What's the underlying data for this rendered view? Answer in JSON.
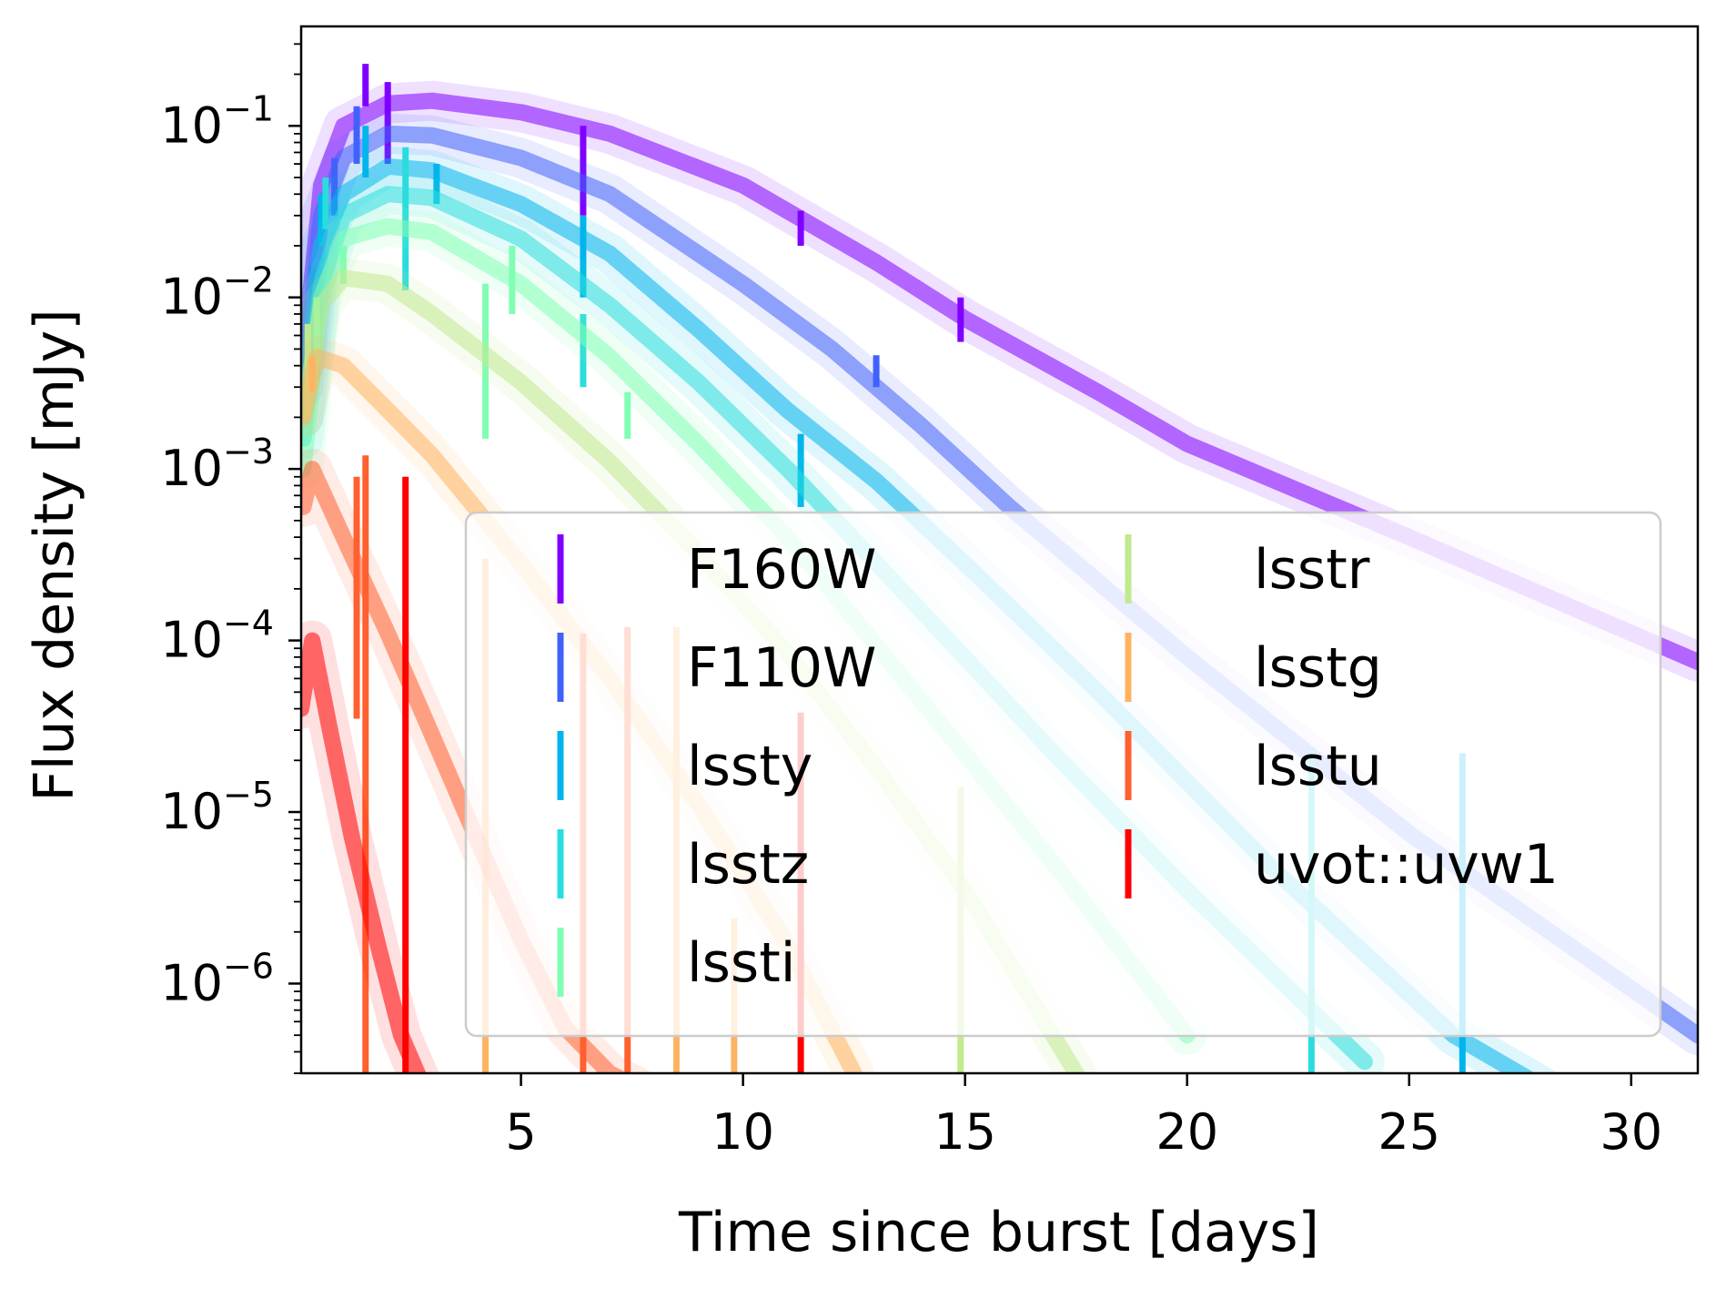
{
  "chart_data": {
    "type": "line",
    "xlabel": "Time since burst [days]",
    "ylabel": "Flux density [mJy]",
    "xscale": "linear",
    "yscale": "log",
    "xlim": [
      0.05,
      31.5
    ],
    "ylim": [
      3e-07,
      0.38
    ],
    "xticks": [
      5,
      10,
      15,
      20,
      25,
      30
    ],
    "xtick_labels": [
      "5",
      "10",
      "15",
      "20",
      "25",
      "30"
    ],
    "yticks": [
      1e-06,
      1e-05,
      0.0001,
      0.001,
      0.01,
      0.1
    ],
    "ytick_labels": [
      {
        "base": "10",
        "exp": "−6"
      },
      {
        "base": "10",
        "exp": "−5"
      },
      {
        "base": "10",
        "exp": "−4"
      },
      {
        "base": "10",
        "exp": "−3"
      },
      {
        "base": "10",
        "exp": "−2"
      },
      {
        "base": "10",
        "exp": "−1"
      }
    ],
    "legend": {
      "placement": "center-right",
      "columns": 2
    },
    "series": [
      {
        "name": "F160W",
        "color": "#8000ff",
        "curve": {
          "x": [
            0.1,
            0.5,
            1,
            2,
            3,
            5,
            7,
            10,
            13,
            15,
            18,
            20,
            25,
            31.5
          ],
          "y": [
            0.004,
            0.045,
            0.1,
            0.135,
            0.14,
            0.12,
            0.09,
            0.045,
            0.016,
            0.0075,
            0.0028,
            0.0014,
            0.0004,
            7.5e-05
          ]
        },
        "points": [
          {
            "x": 1.5,
            "y": 0.17,
            "lo": 0.13,
            "hi": 0.23
          },
          {
            "x": 2.0,
            "y": 0.11,
            "lo": 0.06,
            "hi": 0.18
          },
          {
            "x": 6.4,
            "y": 0.05,
            "lo": 0.03,
            "hi": 0.1
          },
          {
            "x": 11.3,
            "y": 0.025,
            "lo": 0.02,
            "hi": 0.032
          },
          {
            "x": 14.9,
            "y": 0.0075,
            "lo": 0.0055,
            "hi": 0.01
          }
        ]
      },
      {
        "name": "F110W",
        "color": "#4062fa",
        "curve": {
          "x": [
            0.1,
            0.5,
            1,
            2,
            3,
            5,
            7,
            10,
            12,
            14,
            16,
            20,
            25,
            31.5
          ],
          "y": [
            0.003,
            0.03,
            0.065,
            0.09,
            0.088,
            0.065,
            0.04,
            0.012,
            0.005,
            0.0018,
            0.0006,
            8e-05,
            7.5e-06,
            5e-07
          ]
        },
        "points": [
          {
            "x": 0.3,
            "y": 0.01,
            "lo": 0.006,
            "hi": 0.015
          },
          {
            "x": 0.8,
            "y": 0.045,
            "lo": 0.03,
            "hi": 0.065
          },
          {
            "x": 1.3,
            "y": 0.09,
            "lo": 0.06,
            "hi": 0.13
          },
          {
            "x": 13.0,
            "y": 0.0038,
            "lo": 0.003,
            "hi": 0.0046
          }
        ]
      },
      {
        "name": "lssty",
        "color": "#00b5eb",
        "curve": {
          "x": [
            0.1,
            0.5,
            1,
            2,
            3,
            5,
            7,
            9,
            11,
            13,
            15,
            18,
            22,
            26,
            28
          ],
          "y": [
            0.002,
            0.02,
            0.04,
            0.058,
            0.055,
            0.035,
            0.018,
            0.0065,
            0.0022,
            0.00085,
            0.00028,
            5e-05,
            4.5e-06,
            5e-07,
            2.5e-07
          ]
        },
        "points": [
          {
            "x": 0.5,
            "y": 0.028,
            "lo": 0.02,
            "hi": 0.04
          },
          {
            "x": 1.5,
            "y": 0.075,
            "lo": 0.05,
            "hi": 0.1
          },
          {
            "x": 3.1,
            "y": 0.045,
            "lo": 0.035,
            "hi": 0.06
          },
          {
            "x": 6.4,
            "y": 0.018,
            "lo": 0.01,
            "hi": 0.03
          },
          {
            "x": 11.3,
            "y": 0.0008,
            "lo": 0.0006,
            "hi": 0.0016
          },
          {
            "x": 26.2,
            "y": 5e-07,
            "lo": 3e-07,
            "hi": 2.2e-05
          }
        ]
      },
      {
        "name": "lsstz",
        "color": "#2adddd",
        "curve": {
          "x": [
            0.1,
            0.5,
            1,
            2,
            3,
            5,
            7,
            9,
            11,
            14,
            17,
            20,
            24
          ],
          "y": [
            0.0015,
            0.012,
            0.03,
            0.04,
            0.038,
            0.022,
            0.009,
            0.0032,
            0.001,
            0.00015,
            2.2e-05,
            3.5e-06,
            3.5e-07
          ]
        },
        "points": [
          {
            "x": 0.6,
            "y": 0.035,
            "lo": 0.025,
            "hi": 0.05
          },
          {
            "x": 2.4,
            "y": 0.03,
            "lo": 0.011,
            "hi": 0.075
          },
          {
            "x": 6.4,
            "y": 0.005,
            "lo": 0.003,
            "hi": 0.008
          },
          {
            "x": 22.8,
            "y": 5e-07,
            "lo": 3e-07,
            "hi": 2.3e-05
          }
        ]
      },
      {
        "name": "lssti",
        "color": "#80ffb4",
        "curve": {
          "x": [
            0.1,
            0.5,
            1,
            2,
            3,
            5,
            7,
            9,
            11,
            14,
            17,
            20
          ],
          "y": [
            0.001,
            0.01,
            0.022,
            0.026,
            0.024,
            0.012,
            0.0045,
            0.0014,
            0.0004,
            4.5e-05,
            5e-06,
            5e-07
          ]
        },
        "points": [
          {
            "x": 0.4,
            "y": 0.006,
            "lo": 0.004,
            "hi": 0.01
          },
          {
            "x": 1.0,
            "y": 0.016,
            "lo": 0.012,
            "hi": 0.02
          },
          {
            "x": 4.2,
            "y": 0.004,
            "lo": 0.0015,
            "hi": 0.012
          },
          {
            "x": 4.8,
            "y": 0.013,
            "lo": 0.008,
            "hi": 0.02
          },
          {
            "x": 7.4,
            "y": 0.002,
            "lo": 0.0015,
            "hi": 0.0028
          }
        ]
      },
      {
        "name": "lsstr",
        "color": "#c1ea8e",
        "curve": {
          "x": [
            0.1,
            0.5,
            1,
            2,
            3,
            5,
            7,
            9,
            11,
            13,
            15,
            17.5
          ],
          "y": [
            0.002,
            0.009,
            0.013,
            0.012,
            0.008,
            0.0032,
            0.0011,
            0.00032,
            8.5e-05,
            1.8e-05,
            3.5e-06,
            3e-07
          ]
        },
        "points": [
          {
            "x": 0.2,
            "y": 0.004,
            "lo": 0.002,
            "hi": 0.007
          },
          {
            "x": 14.9,
            "y": 5e-07,
            "lo": 3e-07,
            "hi": 1.4e-05
          }
        ]
      },
      {
        "name": "lsstg",
        "color": "#ffb360",
        "curve": {
          "x": [
            0.1,
            0.4,
            1,
            2,
            3,
            5,
            7,
            9,
            11,
            12.5
          ],
          "y": [
            0.002,
            0.0045,
            0.004,
            0.0022,
            0.0012,
            0.00028,
            6e-05,
            1.1e-05,
            1.7e-06,
            3e-07
          ]
        },
        "points": [
          {
            "x": 0.3,
            "y": 0.0035,
            "lo": 0.0028,
            "hi": 0.0045
          },
          {
            "x": 4.2,
            "y": 5e-07,
            "lo": 3e-07,
            "hi": 0.0003
          },
          {
            "x": 8.5,
            "y": 5e-07,
            "lo": 3e-07,
            "hi": 0.00012
          },
          {
            "x": 9.8,
            "y": 5e-07,
            "lo": 3e-07,
            "hi": 2.4e-06
          }
        ]
      },
      {
        "name": "lsstu",
        "color": "#ff6030",
        "curve": {
          "x": [
            0.1,
            0.3,
            1,
            2,
            3,
            4,
            5,
            6,
            7,
            7.6
          ],
          "y": [
            0.0006,
            0.001,
            0.0004,
            0.00011,
            2.8e-05,
            7e-06,
            1.8e-06,
            5.5e-07,
            3e-07,
            2.5e-07
          ]
        },
        "points": [
          {
            "x": 1.3,
            "y": 0.0001,
            "lo": 3.5e-05,
            "hi": 0.0009
          },
          {
            "x": 1.5,
            "y": 0.0005,
            "lo": 3e-07,
            "hi": 0.0012
          },
          {
            "x": 6.4,
            "y": 5e-07,
            "lo": 3e-07,
            "hi": 0.00011
          },
          {
            "x": 7.4,
            "y": 5e-07,
            "lo": 3e-07,
            "hi": 0.00012
          }
        ]
      },
      {
        "name": "uvot::uvw1",
        "color": "#ff0000",
        "curve": {
          "x": [
            0.05,
            0.3,
            0.7,
            1.2,
            1.8,
            2.3,
            2.8
          ],
          "y": [
            4e-05,
            0.0001,
            3e-05,
            7e-06,
            1.6e-06,
            5e-07,
            2.5e-07
          ]
        },
        "points": [
          {
            "x": 2.4,
            "y": 5e-07,
            "lo": 3e-07,
            "hi": 0.0009
          },
          {
            "x": 11.3,
            "y": 5e-07,
            "lo": 3e-07,
            "hi": 3.8e-05
          }
        ]
      }
    ]
  }
}
